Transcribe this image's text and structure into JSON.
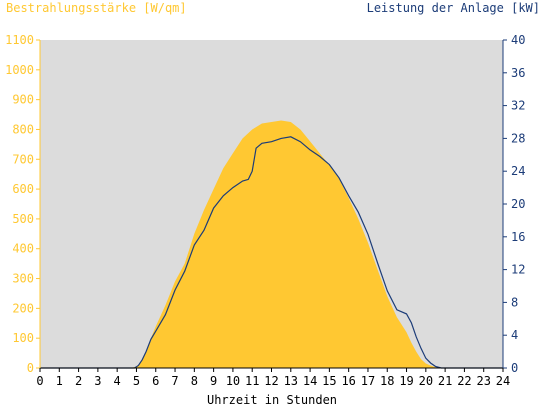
{
  "colors": {
    "left_axis": "#ffc832",
    "right_axis": "#1c3c78",
    "plot_background": "#dcdcdc",
    "fill_series": "#ffc832",
    "line_series": "#1c3c78",
    "x_text": "#000000"
  },
  "chart_data": {
    "type": "area",
    "title_left": "Bestrahlungsstärke [W/qm]",
    "title_right": "Leistung der Anlage [kW]",
    "xlabel": "Uhrzeit in Stunden",
    "xlim": [
      0,
      24
    ],
    "x_ticks": [
      "0",
      "1",
      "2",
      "3",
      "4",
      "5",
      "6",
      "7",
      "8",
      "9",
      "10",
      "11",
      "12",
      "13",
      "14",
      "15",
      "16",
      "17",
      "18",
      "19",
      "20",
      "21",
      "22",
      "23",
      "24"
    ],
    "y_left_lim": [
      0,
      1100
    ],
    "y_left_ticks": [
      "0",
      "100",
      "200",
      "300",
      "400",
      "500",
      "600",
      "700",
      "800",
      "900",
      "1000",
      "1100"
    ],
    "y_right_lim": [
      0,
      40
    ],
    "y_right_ticks": [
      "0",
      "4",
      "8",
      "12",
      "16",
      "20",
      "24",
      "28",
      "32",
      "36",
      "40"
    ],
    "grid": false,
    "series": [
      {
        "name": "Bestrahlungsstärke [W/qm]",
        "axis": "left",
        "style": "filled-area",
        "x": [
          0,
          4.7,
          5.0,
          5.25,
          5.5,
          5.75,
          6.0,
          6.5,
          7.0,
          7.5,
          8.0,
          8.5,
          9.0,
          9.5,
          10.0,
          10.5,
          11.0,
          11.5,
          12.0,
          12.5,
          13.0,
          13.5,
          14.0,
          14.5,
          15.0,
          15.5,
          16.0,
          16.5,
          17.0,
          17.5,
          18.0,
          18.5,
          19.0,
          19.25,
          19.5,
          19.75,
          20.0,
          20.25,
          20.5,
          20.7,
          24
        ],
        "y": [
          0,
          0,
          5,
          20,
          55,
          100,
          140,
          210,
          290,
          350,
          450,
          530,
          600,
          670,
          720,
          770,
          800,
          820,
          825,
          830,
          825,
          800,
          760,
          720,
          680,
          635,
          570,
          500,
          420,
          330,
          240,
          170,
          120,
          85,
          55,
          30,
          15,
          8,
          3,
          0,
          0
        ]
      },
      {
        "name": "Leistung der Anlage [kW]",
        "axis": "right",
        "style": "line",
        "x": [
          0,
          4.9,
          5.1,
          5.3,
          5.5,
          5.75,
          6.0,
          6.5,
          7.0,
          7.5,
          8.0,
          8.5,
          9.0,
          9.5,
          10.0,
          10.5,
          10.8,
          11.0,
          11.2,
          11.5,
          12.0,
          12.5,
          13.0,
          13.5,
          14.0,
          14.5,
          15.0,
          15.5,
          16.0,
          16.5,
          17.0,
          17.5,
          18.0,
          18.5,
          19.0,
          19.25,
          19.5,
          19.75,
          20.0,
          20.25,
          20.5,
          20.8,
          24
        ],
        "y": [
          0,
          0,
          0.3,
          1,
          2,
          3.5,
          4.5,
          6.5,
          9.5,
          11.8,
          15,
          16.8,
          19.5,
          21,
          22,
          22.8,
          23,
          24,
          26.8,
          27.4,
          27.6,
          28,
          28.2,
          27.6,
          26.6,
          25.8,
          24.8,
          23.2,
          21,
          19,
          16.3,
          12.8,
          9.4,
          7.1,
          6.6,
          5.5,
          3.8,
          2.4,
          1.2,
          0.6,
          0.2,
          0,
          0
        ]
      }
    ]
  }
}
